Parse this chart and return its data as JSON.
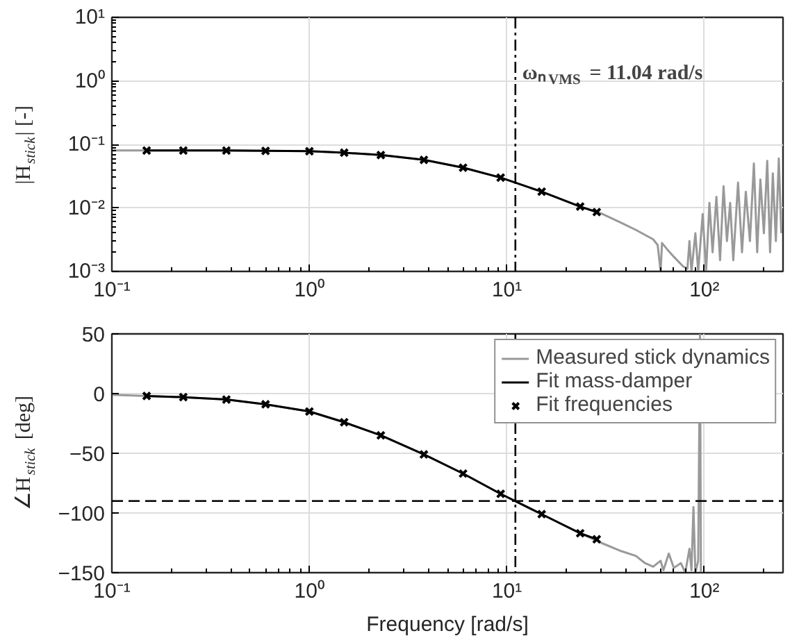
{
  "chart_data": [
    {
      "type": "line",
      "ylabel": "|H$_{stick}$| [-]",
      "log": "xy",
      "grid": true,
      "legend": false,
      "xlim": [
        0.1,
        250
      ],
      "xticks": [
        {
          "value": 0.1,
          "label": "10⁻¹"
        },
        {
          "value": 1,
          "label": "10⁰"
        },
        {
          "value": 10,
          "label": "10¹"
        },
        {
          "value": 100,
          "label": "10²"
        }
      ],
      "ylim": [
        0.001,
        10
      ],
      "yticks": [
        {
          "value": 0.001,
          "label": "10⁻³"
        },
        {
          "value": 0.01,
          "label": "10⁻²"
        },
        {
          "value": 0.1,
          "label": "10⁻¹"
        },
        {
          "value": 1,
          "label": "10⁰"
        },
        {
          "value": 10,
          "label": "10¹"
        }
      ],
      "ref_lines": [
        {
          "axis": "x",
          "value": 11.04,
          "label": "ωₙ$_{VMS}$ = 11.04 rad/s",
          "line_style": "dashdot",
          "color": "#000000"
        }
      ],
      "series": [
        {
          "color": "#999999",
          "x": [
            0.1,
            0.15,
            0.3,
            0.6,
            1,
            1.5,
            2.3,
            3.8,
            6,
            9.3,
            15,
            23.5,
            30,
            38,
            45,
            55,
            58,
            60,
            61,
            65,
            70,
            78,
            82,
            84,
            86,
            90,
            93,
            98,
            102,
            106,
            110,
            115,
            120,
            125,
            130,
            135,
            140,
            148,
            155,
            162,
            170,
            178,
            185,
            192,
            200,
            208,
            215,
            222,
            230,
            238,
            245
          ],
          "values": [
            0.08,
            0.08,
            0.08,
            0.079,
            0.078,
            0.074,
            0.068,
            0.057,
            0.043,
            0.03,
            0.018,
            0.0105,
            0.0082,
            0.0058,
            0.0045,
            0.0032,
            0.0026,
            0.001,
            0.0028,
            0.0022,
            0.0017,
            0.0012,
            0.0011,
            0.003,
            0.001,
            0.004,
            0.001,
            0.008,
            0.001,
            0.012,
            0.002,
            0.015,
            0.0015,
            0.022,
            0.003,
            0.012,
            0.0015,
            0.025,
            0.002,
            0.018,
            0.003,
            0.05,
            0.002,
            0.028,
            0.004,
            0.055,
            0.002,
            0.035,
            0.003,
            0.06,
            0.004
          ]
        },
        {
          "color": "#000000",
          "x": [
            0.15,
            0.23,
            0.38,
            0.6,
            1,
            1.5,
            2.3,
            3.8,
            6,
            9.3,
            15,
            23.5,
            28.5
          ],
          "values": [
            0.08,
            0.08,
            0.08,
            0.079,
            0.078,
            0.074,
            0.068,
            0.057,
            0.043,
            0.03,
            0.018,
            0.0105,
            0.0086
          ]
        },
        {
          "type": "scatter",
          "marker": "cross",
          "color": "#000000",
          "x": [
            0.15,
            0.23,
            0.38,
            0.6,
            1,
            1.5,
            2.3,
            3.8,
            6,
            9.3,
            15,
            23.5,
            28.5
          ],
          "values": [
            0.08,
            0.08,
            0.08,
            0.079,
            0.078,
            0.074,
            0.068,
            0.057,
            0.043,
            0.03,
            0.018,
            0.0105,
            0.0086
          ]
        }
      ]
    },
    {
      "type": "line",
      "xlabel": "Frequency [rad/s]",
      "ylabel": "∠H$_{stick}$ [deg]",
      "log": "x",
      "grid": true,
      "legend": "top right",
      "xlim": [
        0.1,
        250
      ],
      "xticks": [
        {
          "value": 0.1,
          "label": "10⁻¹"
        },
        {
          "value": 1,
          "label": "10⁰"
        },
        {
          "value": 10,
          "label": "10¹"
        },
        {
          "value": 100,
          "label": "10²"
        }
      ],
      "ylim": [
        -150,
        50
      ],
      "yticks": [
        -150,
        -100,
        -50,
        0,
        50
      ],
      "ref_lines": [
        {
          "axis": "x",
          "value": 11.04,
          "line_style": "dashdot",
          "color": "#000000"
        },
        {
          "axis": "y",
          "value": -90,
          "line_style": "dashed",
          "color": "#000000"
        }
      ],
      "series": [
        {
          "name": "Measured stick dynamics",
          "color": "#999999",
          "x": [
            0.1,
            0.15,
            0.23,
            0.38,
            0.6,
            1,
            1.5,
            2.3,
            3.8,
            6,
            9.3,
            15,
            23.5,
            30,
            38,
            45,
            50,
            55,
            60,
            62,
            66,
            70,
            76,
            80,
            84,
            86,
            88,
            90,
            93,
            95,
            96
          ],
          "values": [
            -1,
            -2,
            -3,
            -5,
            -9,
            -15,
            -24,
            -35,
            -51,
            -67,
            -84,
            -101,
            -117,
            -125,
            -132,
            -136,
            -142,
            -145,
            -140,
            -148,
            -134,
            -146,
            -142,
            -150,
            -130,
            -148,
            -95,
            -150,
            -140,
            50,
            -150
          ]
        },
        {
          "name": "Fit mass-damper",
          "color": "#000000",
          "x": [
            0.15,
            0.23,
            0.38,
            0.6,
            1,
            1.5,
            2.3,
            3.8,
            6,
            9.3,
            15,
            23.5,
            28.5
          ],
          "values": [
            -2,
            -3,
            -5,
            -9,
            -15,
            -24,
            -35,
            -51,
            -67,
            -84,
            -101,
            -117,
            -122
          ]
        },
        {
          "type": "scatter",
          "name": "Fit frequencies",
          "marker": "cross",
          "color": "#000000",
          "x": [
            0.15,
            0.23,
            0.38,
            0.6,
            1,
            1.5,
            2.3,
            3.8,
            6,
            9.3,
            15,
            23.5,
            28.5
          ],
          "values": [
            -2,
            -3,
            -5,
            -9,
            -15,
            -24,
            -35,
            -51,
            -67,
            -84,
            -101,
            -117,
            -122
          ]
        }
      ]
    }
  ]
}
